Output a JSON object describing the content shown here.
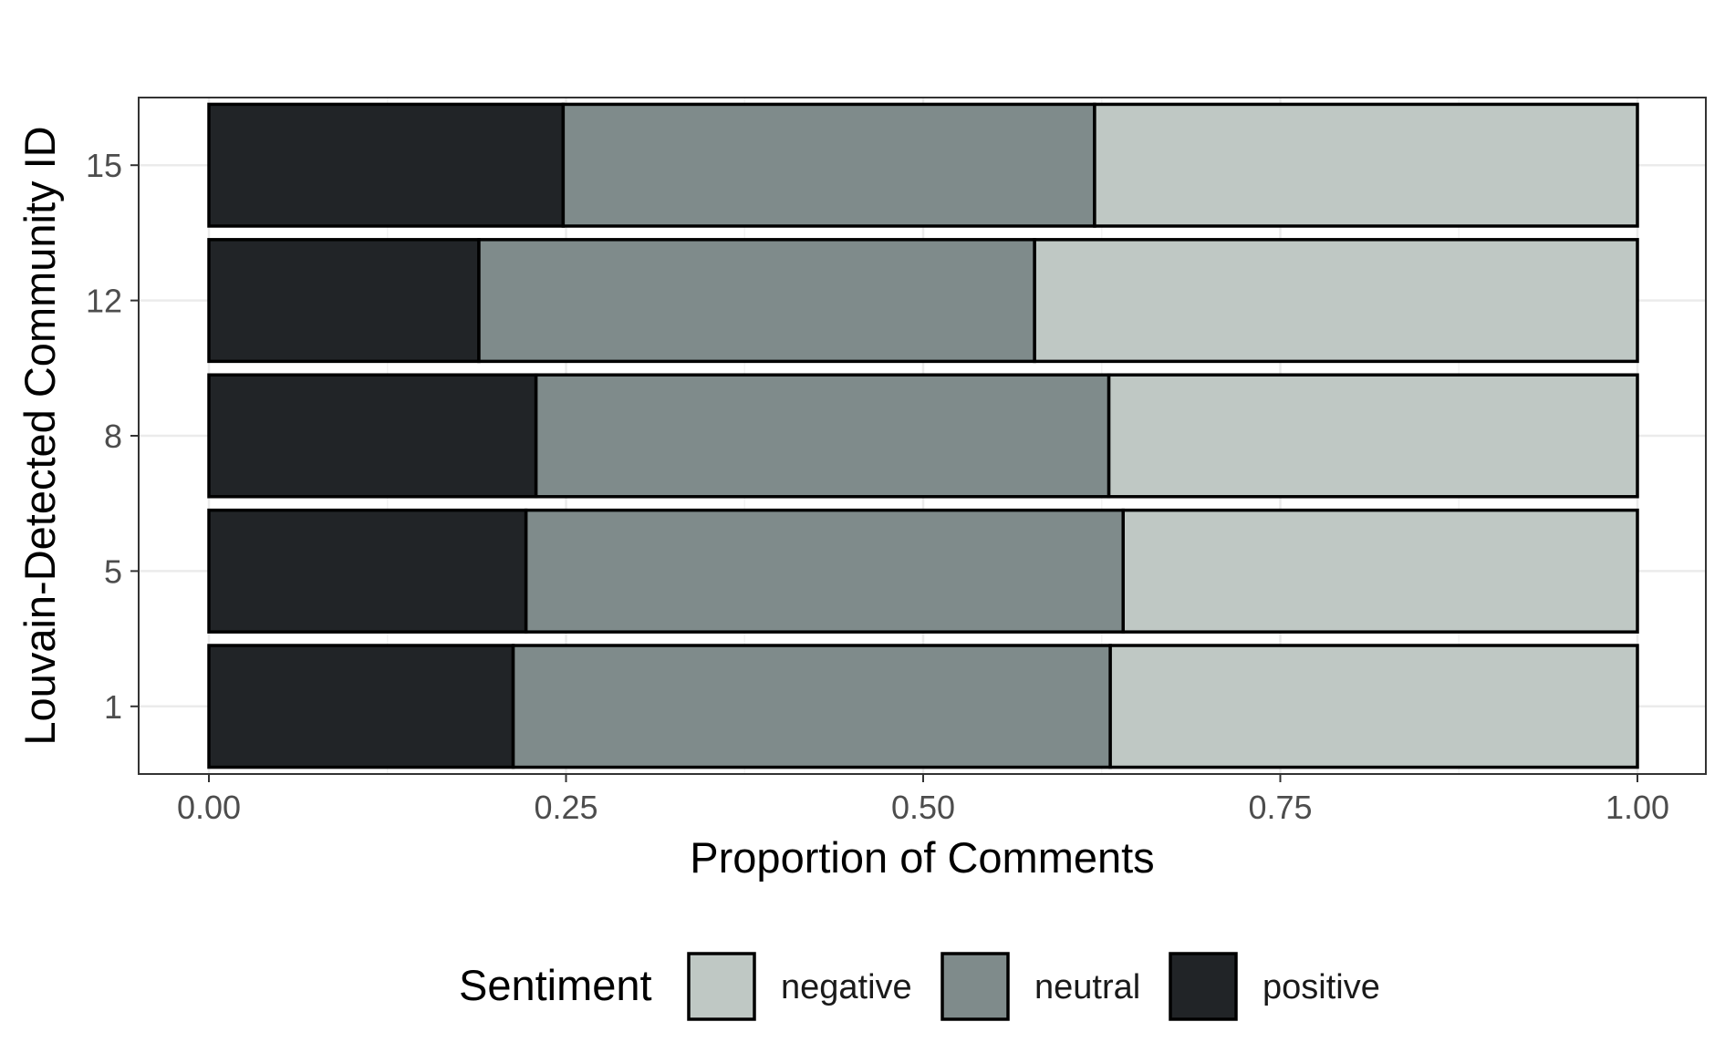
{
  "chart_data": {
    "type": "bar",
    "orientation": "horizontal",
    "stacked": true,
    "xlabel": "Proportion of Comments",
    "ylabel": "Louvain-Detected Community ID",
    "xlim": [
      0,
      1
    ],
    "x_ticks": [
      "0.00",
      "0.25",
      "0.50",
      "0.75",
      "1.00"
    ],
    "categories": [
      "1",
      "5",
      "8",
      "12",
      "15"
    ],
    "series": [
      {
        "name": "positive",
        "color": "#212427",
        "values": [
          0.213,
          0.222,
          0.229,
          0.189,
          0.248
        ]
      },
      {
        "name": "neutral",
        "color": "#7f8b8b",
        "values": [
          0.418,
          0.418,
          0.401,
          0.389,
          0.372
        ]
      },
      {
        "name": "negative",
        "color": "#bfc8c4",
        "values": [
          0.369,
          0.36,
          0.37,
          0.422,
          0.38
        ]
      }
    ],
    "grid": true,
    "legend": {
      "title": "Sentiment",
      "position": "bottom",
      "order": [
        "negative",
        "neutral",
        "positive"
      ]
    }
  }
}
